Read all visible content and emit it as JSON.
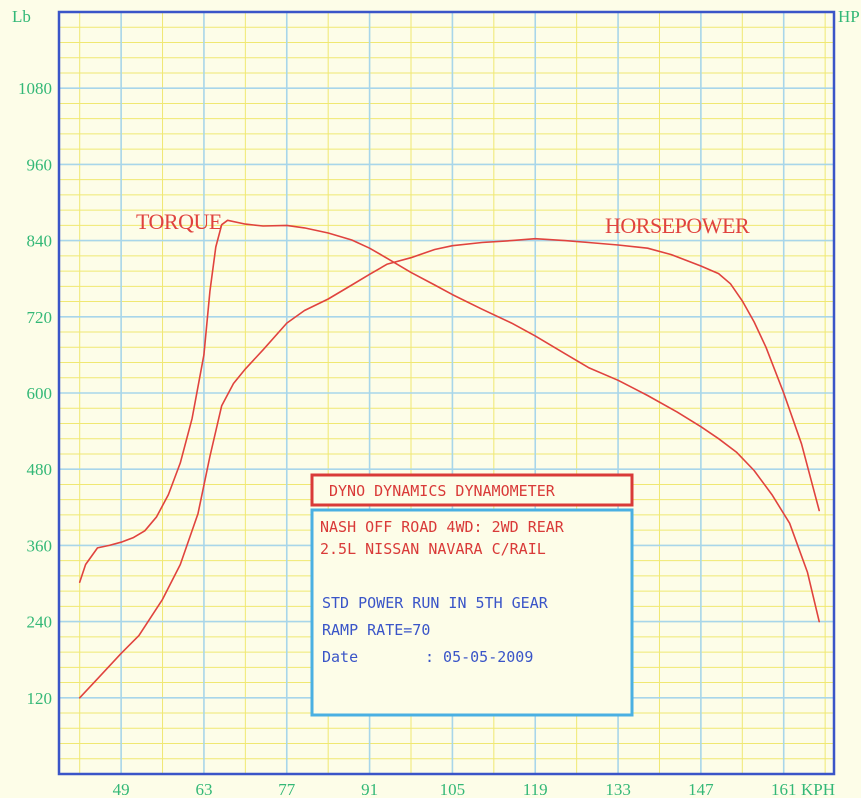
{
  "chart_data": {
    "type": "line",
    "units": {
      "left": "Lb",
      "right": "HP",
      "x": "KPH"
    },
    "x_ticks": [
      49,
      63,
      77,
      91,
      105,
      119,
      133,
      147,
      161
    ],
    "y_ticks": [
      120,
      240,
      360,
      480,
      600,
      720,
      840,
      960,
      1080
    ],
    "xlim": [
      38.5,
      169.5
    ],
    "ylim": [
      0,
      1200
    ],
    "grid": true,
    "series": [
      {
        "name": "TORQUE",
        "color": "#e0433e",
        "x": [
          42,
          43,
          45,
          47,
          49,
          51,
          53,
          55,
          57,
          59,
          61,
          63,
          64,
          65,
          66,
          67,
          70,
          73,
          77,
          80,
          84,
          88,
          91,
          94,
          98,
          102,
          105,
          110,
          115,
          119,
          124,
          128,
          133,
          138,
          143,
          147,
          150,
          153,
          156,
          159,
          162,
          165,
          167
        ],
        "y": [
          302,
          330,
          356,
          360,
          365,
          372,
          383,
          405,
          440,
          490,
          560,
          660,
          760,
          830,
          865,
          872,
          866,
          863,
          864,
          860,
          852,
          841,
          828,
          812,
          790,
          770,
          755,
          732,
          710,
          690,
          662,
          640,
          620,
          596,
          570,
          547,
          528,
          507,
          478,
          440,
          395,
          318,
          240
        ]
      },
      {
        "name": "HORSEPOWER",
        "color": "#e0433e",
        "x": [
          42,
          45,
          49,
          52,
          56,
          59,
          62,
          64,
          66,
          68,
          70,
          73,
          77,
          80,
          84,
          88,
          91,
          94,
          98,
          102,
          105,
          110,
          115,
          119,
          124,
          128,
          133,
          138,
          142,
          147,
          150,
          152,
          154,
          156,
          158,
          161,
          164,
          166,
          167
        ],
        "y": [
          120,
          150,
          190,
          218,
          275,
          330,
          410,
          500,
          580,
          615,
          638,
          668,
          710,
          730,
          748,
          770,
          787,
          803,
          813,
          826,
          832,
          837,
          840,
          843,
          840,
          837,
          833,
          828,
          818,
          800,
          788,
          772,
          745,
          712,
          672,
          600,
          520,
          450,
          415
        ]
      }
    ],
    "annotations": [
      "TORQUE",
      "HORSEPOWER"
    ]
  },
  "info_box": {
    "title": "DYNO DYNAMICS DYNAMOMETER",
    "shop_line": "NASH OFF ROAD 4WD: 2WD REAR",
    "vehicle_line": "2.5L NISSAN NAVARA C/RAIL",
    "run_line": "STD POWER RUN IN 5TH GEAR",
    "ramp_line": "RAMP RATE=70",
    "date_label": "Date",
    "date_value": ": 05-05-2009"
  },
  "colors": {
    "background": "#fdfde8",
    "minor_grid": "#f0e872",
    "major_grid": "#a8d6ea",
    "frame": "#3a55c8",
    "curve": "#e0433e",
    "axis_text": "#33b877",
    "info_title_border": "#d93a38",
    "info_box_border": "#4ab0e2"
  }
}
